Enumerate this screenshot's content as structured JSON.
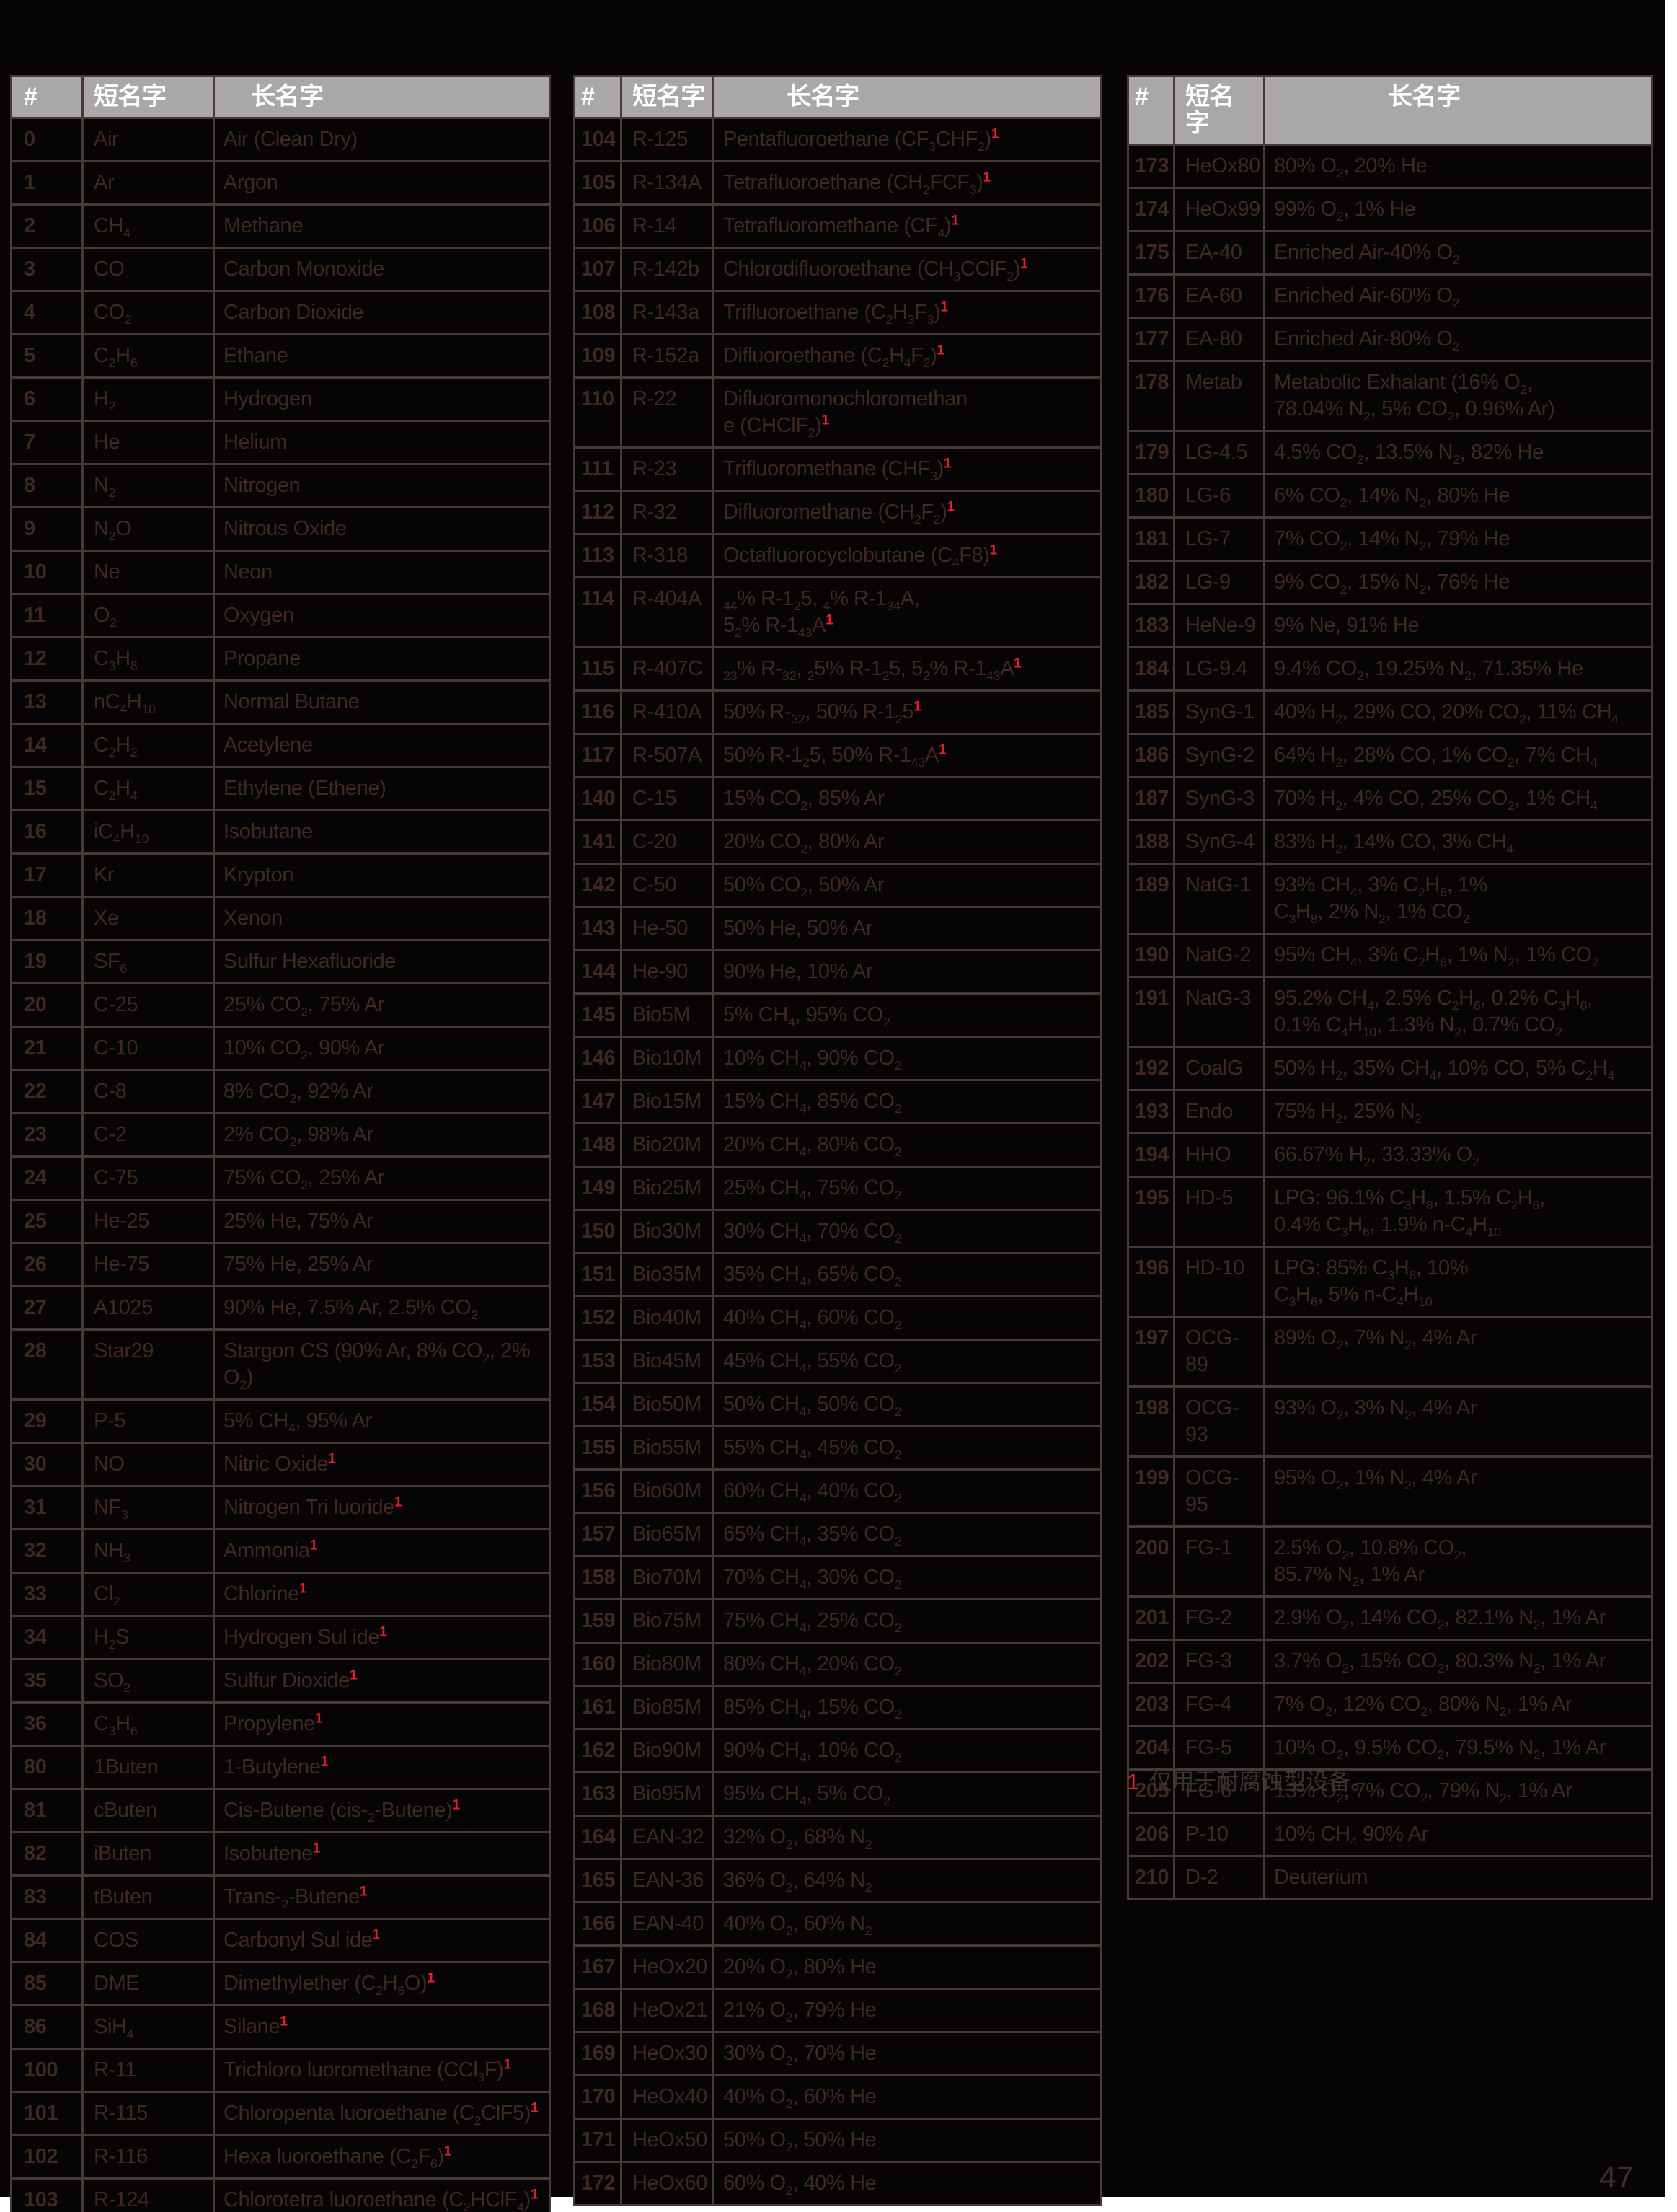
{
  "colors": {
    "accent_red": "#e5202a",
    "header_bg": "#a9a7a8",
    "table_text": "#3e2820",
    "table_border": "#463a34",
    "page_bg": "#060404"
  },
  "column_headers": {
    "num": "#",
    "short": "短名字",
    "long": "长名字"
  },
  "footnote": {
    "marker": "1",
    "text": "仅用于耐腐蚀型设备。"
  },
  "page_number": "47",
  "tables": [
    {
      "rows": [
        {
          "num": "0",
          "short": "Air",
          "long": "Air (Clean Dry)"
        },
        {
          "num": "1",
          "short": "Ar",
          "long": "Argon"
        },
        {
          "num": "2",
          "short": "CH{4}",
          "long": "Methane"
        },
        {
          "num": "3",
          "short": "CO",
          "long": "Carbon Monoxide"
        },
        {
          "num": "4",
          "short": "CO{2}",
          "long": "Carbon Dioxide"
        },
        {
          "num": "5",
          "short": "C{2}H{6}",
          "long": "Ethane"
        },
        {
          "num": "6",
          "short": "H{2}",
          "long": "Hydrogen"
        },
        {
          "num": "7",
          "short": "He",
          "long": "Helium"
        },
        {
          "num": "8",
          "short": "N{2}",
          "long": "Nitrogen"
        },
        {
          "num": "9",
          "short": "N{2}O",
          "long": "Nitrous Oxide"
        },
        {
          "num": "10",
          "short": "Ne",
          "long": "Neon"
        },
        {
          "num": "11",
          "short": "O{2}",
          "long": "Oxygen"
        },
        {
          "num": "12",
          "short": "C{3}H{8}",
          "long": "Propane"
        },
        {
          "num": "13",
          "short": "nC{4}H{10}",
          "long": "Normal Butane"
        },
        {
          "num": "14",
          "short": "C{2}H{2}",
          "long": "Acetylene"
        },
        {
          "num": "15",
          "short": "C{2}H{4}",
          "long": "Ethylene (Ethene)"
        },
        {
          "num": "16",
          "short": "iC{4}H{10}",
          "long": "Isobutane"
        },
        {
          "num": "17",
          "short": "Kr",
          "long": "Krypton"
        },
        {
          "num": "18",
          "short": "Xe",
          "long": "Xenon"
        },
        {
          "num": "19",
          "short": "SF{6}",
          "long": "Sulfur Hexafluoride"
        },
        {
          "num": "20",
          "short": "C-25",
          "long": "25% CO{2}, 75% Ar"
        },
        {
          "num": "21",
          "short": "C-10",
          "long": "10% CO{2}, 90% Ar"
        },
        {
          "num": "22",
          "short": "C-8",
          "long": "8% CO{2}, 92% Ar"
        },
        {
          "num": "23",
          "short": "C-2",
          "long": "2% CO{2}, 98% Ar"
        },
        {
          "num": "24",
          "short": "C-75",
          "long": "75% CO{2}, 25% Ar"
        },
        {
          "num": "25",
          "short": "He-25",
          "long": "25% He, 75% Ar"
        },
        {
          "num": "26",
          "short": "He-75",
          "long": "75% He, 25% Ar"
        },
        {
          "num": "27",
          "short": "A1025",
          "long": "90% He, 7.5% Ar, 2.5% CO{2}"
        },
        {
          "num": "28",
          "short": "Star29",
          "long": "Stargon CS (90% Ar, 8% CO{2}, 2% O{2})"
        },
        {
          "num": "29",
          "short": "P-5",
          "long": "5% CH{4}, 95% Ar"
        },
        {
          "num": "30",
          "short": "NO",
          "long": "Nitric Oxide[1]"
        },
        {
          "num": "31",
          "short": "NF{3}",
          "long": "Nitrogen Tri luoride[1]"
        },
        {
          "num": "32",
          "short": "NH{3}",
          "long": "Ammonia[1]"
        },
        {
          "num": "33",
          "short": "Cl{2}",
          "long": "Chlorine[1]"
        },
        {
          "num": "34",
          "short": "H{2}S",
          "long": "Hydrogen Sul ide[1]"
        },
        {
          "num": "35",
          "short": "SO{2}",
          "long": "Sulfur Dioxide[1]"
        },
        {
          "num": "36",
          "short": "C{3}H{6}",
          "long": "Propylene[1]"
        },
        {
          "num": "80",
          "short": "1Buten",
          "long": "1-Butylene[1]"
        },
        {
          "num": "81",
          "short": "cButen",
          "long": "Cis-Butene (cis-{2}-Butene)[1]"
        },
        {
          "num": "82",
          "short": "iButen",
          "long": "Isobutene[1]"
        },
        {
          "num": "83",
          "short": "tButen",
          "long": "Trans-{2}-Butene[1]"
        },
        {
          "num": "84",
          "short": "COS",
          "long": "Carbonyl Sul ide[1]"
        },
        {
          "num": "85",
          "short": "DME",
          "long": "Dimethylether (C{2}H{6}O)[1]"
        },
        {
          "num": "86",
          "short": "SiH{4}",
          "long": "Silane[1]"
        },
        {
          "num": "100",
          "short": "R-11",
          "long": "Trichloro luoromethane (CCl{3}F)[1]"
        },
        {
          "num": "101",
          "short": "R-115",
          "long": "Chloropenta luoroethane (C{2}ClF5)[1]"
        },
        {
          "num": "102",
          "short": "R-116",
          "long": "Hexa luoroethane (C{2}F{6})[1]"
        },
        {
          "num": "103",
          "short": "R-124",
          "long": "Chlorotetra luoroethane (C{2}HClF{4})[1]"
        }
      ]
    },
    {
      "rows": [
        {
          "num": "104",
          "short": "R-125",
          "long": "Pentafluoroethane (CF{3}CHF{2})[1]"
        },
        {
          "num": "105",
          "short": "R-134A",
          "long": "Tetrafluoroethane (CH{2}FCF{3})[1]"
        },
        {
          "num": "106",
          "short": "R-14",
          "long": "Tetrafluoromethane (CF{4})[1]"
        },
        {
          "num": "107",
          "short": "R-142b",
          "long": "Chlorodifluoroethane (CH{3}CClF{2})[1]"
        },
        {
          "num": "108",
          "short": "R-143a",
          "long": "Trifluoroethane (C{2}H{3}F{3})[1]"
        },
        {
          "num": "109",
          "short": "R-152a",
          "long": "Difluoroethane (C{2}H{4}F{2})[1]"
        },
        {
          "num": "110",
          "short": "R-22",
          "long": "Difluoromonochloromethan\ne (CHClF{2})[1]"
        },
        {
          "num": "111",
          "short": "R-23",
          "long": "Trifluoromethane (CHF{3})[1]"
        },
        {
          "num": "112",
          "short": "R-32",
          "long": "Difluoromethane (CH{2}F{2})[1]"
        },
        {
          "num": "113",
          "short": "R-318",
          "long": "Octafluorocyclobutane (C{4}F8)[1]"
        },
        {
          "num": "114",
          "short": "R-404A",
          "long": "{44}% R-1{2}5, {4}% R-1{34}A,\n5{2}% R-1{43}A[1]"
        },
        {
          "num": "115",
          "short": "R-407C",
          "long": "{23}% R-{32}, {2}5% R-1{2}5, 5{2}% R-1{43}A[1]"
        },
        {
          "num": "116",
          "short": "R-410A",
          "long": "50% R-{32}, 50% R-1{2}5[1]"
        },
        {
          "num": "117",
          "short": "R-507A",
          "long": "50% R-1{2}5, 50% R-1{43}A[1]"
        },
        {
          "num": "140",
          "short": "C-15",
          "long": "15% CO{2}, 85% Ar"
        },
        {
          "num": "141",
          "short": "C-20",
          "long": "20% CO{2}, 80% Ar"
        },
        {
          "num": "142",
          "short": "C-50",
          "long": "50% CO{2}, 50% Ar"
        },
        {
          "num": "143",
          "short": "He-50",
          "long": "50% He, 50% Ar"
        },
        {
          "num": "144",
          "short": "He-90",
          "long": "90% He, 10% Ar"
        },
        {
          "num": "145",
          "short": "Bio5M",
          "long": "5% CH{4}, 95% CO{2}"
        },
        {
          "num": "146",
          "short": "Bio10M",
          "long": "10% CH{4}, 90% CO{2}"
        },
        {
          "num": "147",
          "short": "Bio15M",
          "long": "15% CH{4}, 85% CO{2}"
        },
        {
          "num": "148",
          "short": "Bio20M",
          "long": "20% CH{4}, 80% CO{2}"
        },
        {
          "num": "149",
          "short": "Bio25M",
          "long": "25% CH{4}, 75% CO{2}"
        },
        {
          "num": "150",
          "short": "Bio30M",
          "long": "30% CH{4}, 70% CO{2}"
        },
        {
          "num": "151",
          "short": "Bio35M",
          "long": "35% CH{4}, 65% CO{2}"
        },
        {
          "num": "152",
          "short": "Bio40M",
          "long": "40% CH{4}, 60% CO{2}"
        },
        {
          "num": "153",
          "short": "Bio45M",
          "long": "45% CH{4}, 55% CO{2}"
        },
        {
          "num": "154",
          "short": "Bio50M",
          "long": "50% CH{4}, 50% CO{2}"
        },
        {
          "num": "155",
          "short": "Bio55M",
          "long": "55% CH{4}, 45% CO{2}"
        },
        {
          "num": "156",
          "short": "Bio60M",
          "long": "60% CH{4}, 40% CO{2}"
        },
        {
          "num": "157",
          "short": "Bio65M",
          "long": "65% CH{4}, 35% CO{2}"
        },
        {
          "num": "158",
          "short": "Bio70M",
          "long": "70% CH{4}, 30% CO{2}"
        },
        {
          "num": "159",
          "short": "Bio75M",
          "long": "75% CH{4}, 25% CO{2}"
        },
        {
          "num": "160",
          "short": "Bio80M",
          "long": "80% CH{4}, 20% CO{2}"
        },
        {
          "num": "161",
          "short": "Bio85M",
          "long": "85% CH{4}, 15% CO{2}"
        },
        {
          "num": "162",
          "short": "Bio90M",
          "long": "90% CH{4}, 10% CO{2}"
        },
        {
          "num": "163",
          "short": "Bio95M",
          "long": "95% CH{4}, 5% CO{2}"
        },
        {
          "num": "164",
          "short": "EAN-32",
          "long": "32% O{2}, 68% N{2}"
        },
        {
          "num": "165",
          "short": "EAN-36",
          "long": "36% O{2}, 64% N{2}"
        },
        {
          "num": "166",
          "short": "EAN-40",
          "long": "40% O{2}, 60% N{2}"
        },
        {
          "num": "167",
          "short": "HeOx20",
          "long": "20% O{2}, 80% He"
        },
        {
          "num": "168",
          "short": "HeOx21",
          "long": "21% O{2}, 79% He"
        },
        {
          "num": "169",
          "short": "HeOx30",
          "long": "30% O{2}, 70% He"
        },
        {
          "num": "170",
          "short": "HeOx40",
          "long": "40% O{2}, 60% He"
        },
        {
          "num": "171",
          "short": "HeOx50",
          "long": "50% O{2}, 50% He"
        },
        {
          "num": "172",
          "short": "HeOx60",
          "long": "60% O{2}, 40% He"
        }
      ]
    },
    {
      "rows": [
        {
          "num": "173",
          "short": "HeOx80",
          "long": "80% O{2}, 20% He"
        },
        {
          "num": "174",
          "short": "HeOx99",
          "long": "99% O{2}, 1% He"
        },
        {
          "num": "175",
          "short": "EA-40",
          "long": "Enriched Air-40% O{2}"
        },
        {
          "num": "176",
          "short": "EA-60",
          "long": "Enriched Air-60% O{2}"
        },
        {
          "num": "177",
          "short": "EA-80",
          "long": "Enriched Air-80% O{2}"
        },
        {
          "num": "178",
          "short": "Metab",
          "long": "Metabolic Exhalant (16% O{2},\n78.04% N{2}, 5% CO{2}, 0.96% Ar)"
        },
        {
          "num": "179",
          "short": "LG-4.5",
          "long": "4.5% CO{2}, 13.5% N{2}, 82% He"
        },
        {
          "num": "180",
          "short": "LG-6",
          "long": "6% CO{2}, 14% N{2}, 80% He"
        },
        {
          "num": "181",
          "short": "LG-7",
          "long": "7% CO{2}, 14% N{2}, 79% He"
        },
        {
          "num": "182",
          "short": "LG-9",
          "long": "9% CO{2}, 15% N{2}, 76% He"
        },
        {
          "num": "183",
          "short": "HeNe-9",
          "long": "9% Ne, 91% He"
        },
        {
          "num": "184",
          "short": "LG-9.4",
          "long": "9.4% CO{2}, 19.25% N{2}, 71.35% He"
        },
        {
          "num": "185",
          "short": "SynG-1",
          "long": "40% H{2}, 29% CO, 20% CO{2}, 11% CH{4}"
        },
        {
          "num": "186",
          "short": "SynG-2",
          "long": "64% H{2}, 28% CO, 1% CO{2}, 7% CH{4}"
        },
        {
          "num": "187",
          "short": "SynG-3",
          "long": "70% H{2}, 4% CO, 25% CO{2}, 1% CH{4}"
        },
        {
          "num": "188",
          "short": "SynG-4",
          "long": "83% H{2}, 14% CO, 3% CH{4}"
        },
        {
          "num": "189",
          "short": "NatG-1",
          "long": "93% CH{4}, 3% C{2}H{6}, 1%\nC{3}H{8}, 2% N{2}, 1% CO{2}"
        },
        {
          "num": "190",
          "short": "NatG-2",
          "long": "95% CH{4}, 3% C{2}H{6}, 1% N{2}, 1% CO{2}"
        },
        {
          "num": "191",
          "short": "NatG-3",
          "long": "95.2% CH{4}, 2.5% C{2}H{6}, 0.2% C{3}H{8},\n0.1% C{4}H{10}, 1.3% N{2}, 0.7% CO{2}"
        },
        {
          "num": "192",
          "short": "CoalG",
          "long": "50% H{2}, 35% CH{4}, 10% CO, 5% C{2}H{4}"
        },
        {
          "num": "193",
          "short": "Endo",
          "long": "75% H{2}, 25% N{2}"
        },
        {
          "num": "194",
          "short": "HHO",
          "long": "66.67% H{2}, 33.33% O{2}"
        },
        {
          "num": "195",
          "short": "HD-5",
          "long": "LPG: 96.1% C{3}H{8}, 1.5% C{2}H{6},\n0.4% C{3}H{6}, 1.9% n-C{4}H{10}"
        },
        {
          "num": "196",
          "short": "HD-10",
          "long": "LPG: 85% C{3}H{8}, 10%\nC{3}H{6}, 5% n-C{4}H{10}"
        },
        {
          "num": "197",
          "short": "OCG-89",
          "long": "89% O{2}, 7% N{2}, 4% Ar"
        },
        {
          "num": "198",
          "short": "OCG-93",
          "long": "93% O{2}, 3% N{2}, 4% Ar"
        },
        {
          "num": "199",
          "short": "OCG-95",
          "long": "95% O{2}, 1% N{2}, 4% Ar"
        },
        {
          "num": "200",
          "short": "FG-1",
          "long": "2.5% O{2}, 10.8% CO{2},\n85.7% N{2}, 1% Ar"
        },
        {
          "num": "201",
          "short": "FG-2",
          "long": "2.9% O{2}, 14% CO{2}, 82.1% N{2}, 1% Ar"
        },
        {
          "num": "202",
          "short": "FG-3",
          "long": "3.7% O{2}, 15% CO{2}, 80.3% N{2}, 1% Ar"
        },
        {
          "num": "203",
          "short": "FG-4",
          "long": "7% O{2}, 12% CO{2}, 80% N{2}, 1% Ar"
        },
        {
          "num": "204",
          "short": "FG-5",
          "long": "10% O{2}, 9.5% CO{2}, 79.5% N{2}, 1% Ar"
        },
        {
          "num": "205",
          "short": "FG-6",
          "long": "13% O{2}, 7% CO{2}, 79% N{2}, 1% Ar"
        },
        {
          "num": "206",
          "short": "P-10",
          "long": "10% CH{4} 90% Ar"
        },
        {
          "num": "210",
          "short": "D-2",
          "long": "Deuterium"
        }
      ]
    }
  ]
}
